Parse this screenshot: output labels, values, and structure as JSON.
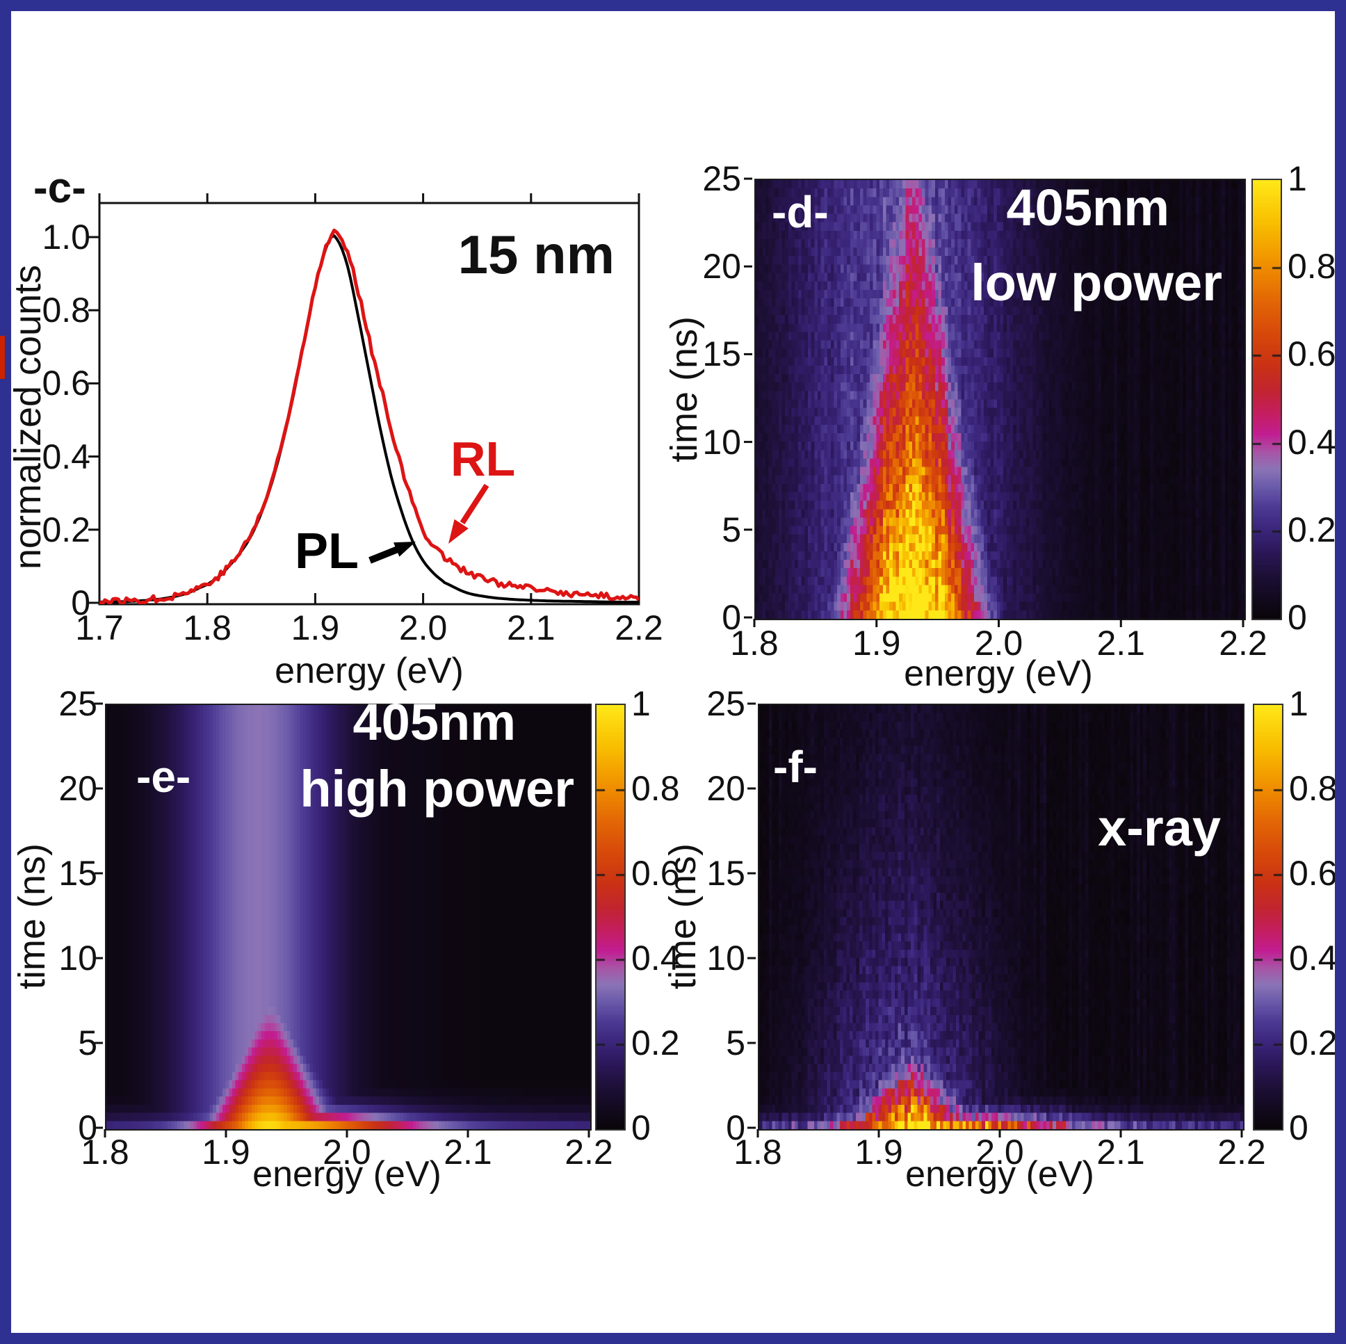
{
  "figure": {
    "border_color": "#2e3191",
    "background": "#ffffff",
    "edge_artifact_color": "#cc2200"
  },
  "panel_c": {
    "label": "-c-",
    "annotation": "15 nm",
    "xlabel": "energy (eV)",
    "ylabel": "normalized counts",
    "x_ticks": [
      "1.7",
      "1.8",
      "1.9",
      "2.0",
      "2.1",
      "2.2"
    ],
    "y_ticks": [
      "0",
      "0.2",
      "0.4",
      "0.6",
      "0.8",
      "1.0"
    ],
    "series_labels": {
      "rl": "RL",
      "pl": "PL"
    },
    "colors": {
      "rl": "#dd1414",
      "pl": "#000000"
    }
  },
  "panel_d": {
    "label": "-d-",
    "annotation_line1": "405nm",
    "annotation_line2": "low power",
    "xlabel": "energy (eV)",
    "ylabel": "time (ns)",
    "x_ticks": [
      "1.8",
      "1.9",
      "2.0",
      "2.1",
      "2.2"
    ],
    "y_ticks": [
      "0",
      "5",
      "10",
      "15",
      "20",
      "25"
    ],
    "colorbar_ticks": [
      "1",
      "0.8",
      "0.6",
      "0.4",
      "0.2",
      "0"
    ]
  },
  "panel_e": {
    "label": "-e-",
    "annotation_line1": "405nm",
    "annotation_line2": "high power",
    "xlabel": "energy (eV)",
    "ylabel": "time (ns)",
    "x_ticks": [
      "1.8",
      "1.9",
      "2.0",
      "2.1",
      "2.2"
    ],
    "y_ticks": [
      "0",
      "5",
      "10",
      "15",
      "20",
      "25"
    ],
    "colorbar_ticks": [
      "1",
      "0.8",
      "0.6",
      "0.4",
      "0.2",
      "0"
    ]
  },
  "panel_f": {
    "label": "-f-",
    "annotation_line1": "x-ray",
    "xlabel": "energy (eV)",
    "ylabel": "time (ns)",
    "x_ticks": [
      "1.8",
      "1.9",
      "2.0",
      "2.1",
      "2.2"
    ],
    "y_ticks": [
      "0",
      "5",
      "10",
      "15",
      "20",
      "25"
    ],
    "colorbar_ticks": [
      "1",
      "0.8",
      "0.6",
      "0.4",
      "0.2",
      "0"
    ]
  },
  "colormap": [
    [
      0.0,
      "#0a0509"
    ],
    [
      0.05,
      "#130a20"
    ],
    [
      0.1,
      "#1d1038"
    ],
    [
      0.15,
      "#2a1758"
    ],
    [
      0.2,
      "#392478"
    ],
    [
      0.25,
      "#4b3892"
    ],
    [
      0.3,
      "#6a5aaa"
    ],
    [
      0.34,
      "#8a74b6"
    ],
    [
      0.38,
      "#a855a6"
    ],
    [
      0.42,
      "#c21d92"
    ],
    [
      0.47,
      "#c41e5e"
    ],
    [
      0.52,
      "#c22430"
    ],
    [
      0.58,
      "#ca3214"
    ],
    [
      0.65,
      "#d7490a"
    ],
    [
      0.72,
      "#e26406"
    ],
    [
      0.8,
      "#ef8b00"
    ],
    [
      0.9,
      "#f8bd00"
    ],
    [
      1.0,
      "#ffe818"
    ]
  ],
  "chart_data": [
    {
      "id": "c",
      "type": "line",
      "xlabel": "energy (eV)",
      "ylabel": "normalized counts",
      "xlim": [
        1.7,
        2.2
      ],
      "ylim": [
        0,
        1.05
      ],
      "annotations": [
        "15 nm"
      ],
      "series": [
        {
          "name": "PL",
          "color": "#000000",
          "noise": 0,
          "points": [
            [
              1.7,
              0.002
            ],
            [
              1.72,
              0.003
            ],
            [
              1.74,
              0.006
            ],
            [
              1.76,
              0.012
            ],
            [
              1.78,
              0.025
            ],
            [
              1.8,
              0.05
            ],
            [
              1.81,
              0.07
            ],
            [
              1.82,
              0.1
            ],
            [
              1.83,
              0.135
            ],
            [
              1.84,
              0.18
            ],
            [
              1.85,
              0.245
            ],
            [
              1.86,
              0.33
            ],
            [
              1.87,
              0.44
            ],
            [
              1.88,
              0.57
            ],
            [
              1.89,
              0.72
            ],
            [
              1.9,
              0.86
            ],
            [
              1.905,
              0.92
            ],
            [
              1.91,
              0.97
            ],
            [
              1.915,
              1.0
            ],
            [
              1.92,
              0.995
            ],
            [
              1.93,
              0.92
            ],
            [
              1.94,
              0.78
            ],
            [
              1.95,
              0.63
            ],
            [
              1.96,
              0.48
            ],
            [
              1.97,
              0.35
            ],
            [
              1.98,
              0.25
            ],
            [
              1.99,
              0.17
            ],
            [
              2.0,
              0.115
            ],
            [
              2.01,
              0.08
            ],
            [
              2.02,
              0.055
            ],
            [
              2.04,
              0.028
            ],
            [
              2.06,
              0.016
            ],
            [
              2.08,
              0.01
            ],
            [
              2.1,
              0.007
            ],
            [
              2.12,
              0.005
            ],
            [
              2.14,
              0.004
            ],
            [
              2.16,
              0.003
            ],
            [
              2.18,
              0.002
            ],
            [
              2.2,
              0.002
            ]
          ]
        },
        {
          "name": "RL",
          "color": "#dd1414",
          "noise": 0.009,
          "points": [
            [
              1.7,
              0.004
            ],
            [
              1.72,
              0.005
            ],
            [
              1.74,
              0.008
            ],
            [
              1.76,
              0.014
            ],
            [
              1.78,
              0.028
            ],
            [
              1.8,
              0.052
            ],
            [
              1.81,
              0.072
            ],
            [
              1.82,
              0.1
            ],
            [
              1.83,
              0.138
            ],
            [
              1.84,
              0.185
            ],
            [
              1.85,
              0.25
            ],
            [
              1.86,
              0.335
            ],
            [
              1.87,
              0.445
            ],
            [
              1.88,
              0.575
            ],
            [
              1.89,
              0.725
            ],
            [
              1.9,
              0.865
            ],
            [
              1.905,
              0.925
            ],
            [
              1.91,
              0.975
            ],
            [
              1.915,
              1.005
            ],
            [
              1.92,
              1.01
            ],
            [
              1.93,
              0.955
            ],
            [
              1.94,
              0.85
            ],
            [
              1.95,
              0.73
            ],
            [
              1.955,
              0.655
            ],
            [
              1.96,
              0.6
            ],
            [
              1.97,
              0.48
            ],
            [
              1.98,
              0.37
            ],
            [
              1.99,
              0.275
            ],
            [
              2.0,
              0.2
            ],
            [
              2.01,
              0.155
            ],
            [
              2.02,
              0.125
            ],
            [
              2.04,
              0.085
            ],
            [
              2.06,
              0.062
            ],
            [
              2.08,
              0.048
            ],
            [
              2.1,
              0.038
            ],
            [
              2.12,
              0.03
            ],
            [
              2.14,
              0.024
            ],
            [
              2.16,
              0.02
            ],
            [
              2.18,
              0.016
            ],
            [
              2.2,
              0.013
            ]
          ]
        }
      ]
    },
    {
      "id": "d",
      "type": "heatmap",
      "annotations": [
        "405nm",
        "low power"
      ],
      "xlabel": "energy (eV)",
      "ylabel": "time (ns)",
      "xlim": [
        1.8,
        2.2
      ],
      "ylim": [
        0,
        25
      ],
      "colorbar": {
        "min": 0,
        "max": 1,
        "ticks": [
          0,
          0.2,
          0.4,
          0.6,
          0.8,
          1
        ]
      },
      "grid": {
        "cols": 150,
        "rows": 52
      },
      "seed": 11,
      "bg": 0.02,
      "noise": {
        "cell": 0.18,
        "col": 0.1,
        "add": 0.035
      },
      "components": [
        {
          "kind": "flame",
          "center": 1.928,
          "sigma0": 0.055,
          "shrink": 0.55,
          "shrink_end": 25,
          "tau": 22,
          "amp": 1.15
        },
        {
          "kind": "column",
          "center": 1.92,
          "sigma": 0.11,
          "amp": 0.27,
          "tau": 0
        }
      ]
    },
    {
      "id": "e",
      "type": "heatmap",
      "annotations": [
        "405nm",
        "high power"
      ],
      "xlabel": "energy (eV)",
      "ylabel": "time (ns)",
      "xlim": [
        1.8,
        2.2
      ],
      "ylim": [
        0,
        25
      ],
      "colorbar": {
        "min": 0,
        "max": 1,
        "ticks": [
          0,
          0.2,
          0.4,
          0.6,
          0.8,
          1
        ]
      },
      "grid": {
        "cols": 150,
        "rows": 52
      },
      "seed": 5,
      "bg": 0.012,
      "noise": {
        "cell": 0,
        "col": 0,
        "add": 0
      },
      "components": [
        {
          "kind": "flame",
          "center": 1.935,
          "sigma0": 0.05,
          "shrink": 0.75,
          "shrink_end": 10,
          "tau": 6.5,
          "amp": 1.0
        },
        {
          "kind": "column",
          "center": 1.925,
          "sigma": 0.07,
          "amp": 0.34,
          "tau": 0
        },
        {
          "kind": "column",
          "center": 1.94,
          "sigma": 0.15,
          "amp": 0.05,
          "tau": 0
        },
        {
          "kind": "stripe",
          "center": 1.94,
          "sigma_left": 0.058,
          "sigma_right": 0.105,
          "amp": 0.92,
          "base": 0.26,
          "tau": 0.9
        }
      ]
    },
    {
      "id": "f",
      "type": "heatmap",
      "annotations": [
        "x-ray"
      ],
      "xlabel": "energy (eV)",
      "ylabel": "time (ns)",
      "xlim": [
        1.8,
        2.2
      ],
      "ylim": [
        0,
        25
      ],
      "colorbar": {
        "min": 0,
        "max": 1,
        "ticks": [
          0,
          0.2,
          0.4,
          0.6,
          0.8,
          1
        ]
      },
      "grid": {
        "cols": 150,
        "rows": 52
      },
      "seed": 23,
      "bg": 0.016,
      "noise": {
        "cell": 0.26,
        "col": 0.14,
        "add": 0.04
      },
      "components": [
        {
          "kind": "flame",
          "center": 1.925,
          "sigma0": 0.05,
          "shrink": 0.6,
          "shrink_end": 6,
          "tau": 3.2,
          "amp": 1.05
        },
        {
          "kind": "column",
          "center": 1.925,
          "sigma": 0.055,
          "amp": 0.38,
          "tau": 10
        },
        {
          "kind": "column",
          "center": 1.92,
          "sigma": 0.08,
          "amp": 0.3,
          "tau": 18
        },
        {
          "kind": "stripe",
          "center": 1.935,
          "sigma_left": 0.065,
          "sigma_right": 0.105,
          "amp": 0.9,
          "base": 0.28,
          "tau": 0.8
        }
      ]
    }
  ]
}
